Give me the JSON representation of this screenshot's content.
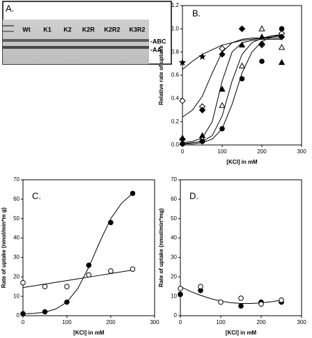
{
  "chart_data": [
    {
      "type": "gel",
      "title": "A.",
      "lanes": [
        "Wt",
        "K1",
        "K2",
        "K2R",
        "K2R2",
        "K3R2"
      ],
      "bands": [
        "-ABC",
        "-AA"
      ]
    },
    {
      "type": "scatter",
      "title": "B.",
      "xlabel": "[KCl] in mM",
      "ylabel": "Relative rate of uptake",
      "xlim": [
        0,
        300
      ],
      "xticks": [
        0,
        100,
        200,
        300
      ],
      "ylim": [
        0,
        1.2
      ],
      "yticks": [
        {
          "value": 0,
          "label": "0.0"
        },
        {
          "value": 0.2,
          "label": "0.2"
        },
        {
          "value": 0.4,
          "label": "0.4"
        },
        {
          "value": 0.6,
          "label": "0.6"
        },
        {
          "value": 0.8,
          "label": "0.8"
        },
        {
          "value": 1,
          "label": "1.0"
        },
        {
          "value": 1.2,
          "label": "1.2"
        }
      ],
      "x": [
        0,
        50,
        100,
        150,
        200,
        250
      ],
      "series": [
        {
          "marker": "star",
          "values": [
            0.71,
            0.76,
            null,
            null,
            null,
            null
          ]
        },
        {
          "marker": "diamond-open",
          "values": [
            0.38,
            0.33,
            0.83,
            1.0,
            0.86,
            0.96
          ]
        },
        {
          "marker": "diamond-filled",
          "values": [
            0.05,
            0.3,
            0.78,
            1.0,
            0.87,
            0.93
          ]
        },
        {
          "marker": "triangle-filled",
          "values": [
            0.06,
            0.08,
            0.48,
            0.86,
            0.93,
            0.71
          ]
        },
        {
          "marker": "triangle-open",
          "values": [
            0.02,
            0.05,
            0.34,
            0.68,
            1.0,
            0.84
          ]
        },
        {
          "marker": "circle-filled",
          "values": [
            0.01,
            0.03,
            0.14,
            0.57,
            0.72,
            1.0
          ]
        }
      ],
      "fit_x": [
        0,
        25,
        50,
        75,
        100,
        125,
        150,
        175,
        200,
        225,
        250
      ],
      "fits": [
        {
          "values": [
            0.65,
            0.72,
            0.78,
            0.82,
            0.86,
            0.88,
            0.9,
            0.91,
            0.92,
            0.93,
            0.94
          ]
        },
        {
          "values": [
            0.24,
            0.3,
            0.42,
            0.62,
            0.8,
            0.88,
            0.91,
            0.92,
            0.92,
            0.92,
            0.92
          ]
        },
        {
          "values": [
            0.02,
            0.03,
            0.06,
            0.2,
            0.55,
            0.8,
            0.88,
            0.9,
            0.91,
            0.91,
            0.91
          ]
        },
        {
          "values": [
            0.01,
            0.02,
            0.03,
            0.08,
            0.25,
            0.55,
            0.78,
            0.88,
            0.92,
            0.94,
            0.95
          ]
        },
        {
          "values": [
            0.01,
            0.01,
            0.02,
            0.05,
            0.14,
            0.35,
            0.62,
            0.8,
            0.89,
            0.93,
            0.95
          ]
        }
      ]
    },
    {
      "type": "scatter",
      "title": "C.",
      "xlabel": "[KCl] in mM",
      "ylabel": "Rate of uptake (nmol/min*m g)",
      "xlim": [
        0,
        300
      ],
      "xticks": [
        0,
        100,
        200,
        300
      ],
      "ylim": [
        0,
        70
      ],
      "yticks": [
        0,
        10,
        20,
        30,
        40,
        50,
        60,
        70
      ],
      "x": [
        0,
        50,
        100,
        150,
        200,
        250
      ],
      "series": [
        {
          "marker": "circle-filled",
          "values": [
            1,
            2,
            7,
            26,
            48,
            63
          ]
        },
        {
          "marker": "circle-open",
          "values": [
            17,
            15,
            15,
            21,
            23,
            24
          ]
        }
      ],
      "fit_x": [
        0,
        25,
        50,
        75,
        100,
        125,
        150,
        175,
        200,
        225,
        250
      ],
      "fits": [
        {
          "values": [
            1,
            1.2,
            1.8,
            3.5,
            7,
            14,
            25,
            38,
            50,
            58,
            63
          ]
        },
        {
          "values": [
            14.5,
            15.4,
            16.3,
            17.2,
            18.1,
            19,
            19.9,
            20.8,
            21.7,
            22.6,
            23.5
          ]
        }
      ]
    },
    {
      "type": "scatter",
      "title": "D.",
      "xlabel": "[KCl] in mM",
      "ylabel": "Rate of uptake (nmol/min*mg)",
      "xlim": [
        0,
        300
      ],
      "xticks": [
        0,
        100,
        200,
        300
      ],
      "ylim": [
        0,
        70
      ],
      "yticks": [
        0,
        10,
        20,
        30,
        40,
        50,
        60,
        70
      ],
      "x": [
        0,
        50,
        100,
        150,
        200,
        250
      ],
      "series": [
        {
          "marker": "circle-filled",
          "values": [
            11,
            13,
            null,
            5,
            7,
            7
          ]
        },
        {
          "marker": "circle-open",
          "values": [
            14,
            15,
            7,
            9,
            6,
            8
          ]
        }
      ],
      "fit_x": [
        0,
        25,
        50,
        75,
        100,
        125,
        150,
        175,
        200,
        225,
        250
      ],
      "fits": [
        {
          "values": [
            15,
            12.5,
            10.5,
            8.8,
            7.5,
            6.7,
            6.3,
            6.3,
            6.6,
            7.2,
            8
          ]
        }
      ]
    }
  ]
}
